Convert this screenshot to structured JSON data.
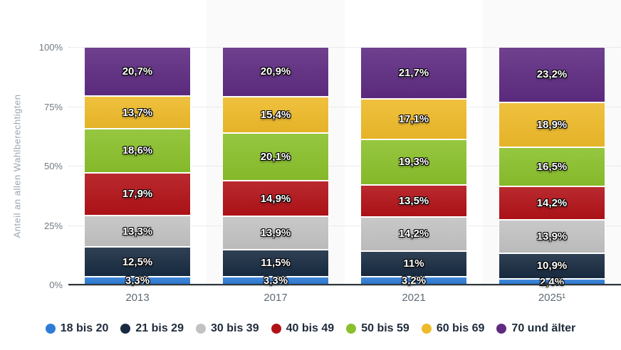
{
  "chart_data": {
    "type": "bar",
    "stacked": true,
    "title": "",
    "ylabel": "Anteil an allen Wahlberechtigten",
    "xlabel": "",
    "categories": [
      "2013",
      "2017",
      "2021",
      "2025¹"
    ],
    "yticks": [
      "0%",
      "25%",
      "50%",
      "75%",
      "100%"
    ],
    "ylim": [
      0,
      100
    ],
    "grid": "horizontal-dotted",
    "legend_position": "bottom",
    "plot_band_color": "#fafafa",
    "plot_band_category_indices": [
      1,
      3
    ],
    "series": [
      {
        "name": "18 bis 20",
        "color": "#2d7cd6",
        "values": [
          3.3,
          3.3,
          3.2,
          2.4
        ],
        "labels": [
          "3,3%",
          "3,3%",
          "3,2%",
          "2,4%"
        ]
      },
      {
        "name": "21 bis 29",
        "color": "#182b41",
        "values": [
          12.5,
          11.5,
          11.0,
          10.9
        ],
        "labels": [
          "12,5%",
          "11,5%",
          "11%",
          "10,9%"
        ]
      },
      {
        "name": "30 bis 39",
        "color": "#c2c2c2",
        "values": [
          13.3,
          13.9,
          14.2,
          13.9
        ],
        "labels": [
          "13,3%",
          "13,9%",
          "14,2%",
          "13,9%"
        ]
      },
      {
        "name": "40 bis 49",
        "color": "#b11217",
        "values": [
          17.9,
          14.9,
          13.5,
          14.2
        ],
        "labels": [
          "17,9%",
          "14,9%",
          "13,5%",
          "14,2%"
        ]
      },
      {
        "name": "50 bis 59",
        "color": "#8ac02b",
        "values": [
          18.6,
          20.1,
          19.3,
          16.5
        ],
        "labels": [
          "18,6%",
          "20,1%",
          "19,3%",
          "16,5%"
        ]
      },
      {
        "name": "60 bis 69",
        "color": "#eeba29",
        "values": [
          13.7,
          15.4,
          17.1,
          18.9
        ],
        "labels": [
          "13,7%",
          "15,4%",
          "17,1%",
          "18,9%"
        ]
      },
      {
        "name": "70 und älter",
        "color": "#5e2b81",
        "values": [
          20.7,
          20.9,
          21.7,
          23.2
        ],
        "labels": [
          "20,7%",
          "20,9%",
          "21,7%",
          "23,2%"
        ]
      }
    ],
    "colors": {
      "axis_line": "#2f363c",
      "gridline": "#d6d9dc",
      "tick_text": "#6f7a84",
      "axis_title_text": "#9aa6b2",
      "category_text": "#5f6b76",
      "legend_text": "#1e2b3a",
      "background": "#ffffff"
    }
  }
}
